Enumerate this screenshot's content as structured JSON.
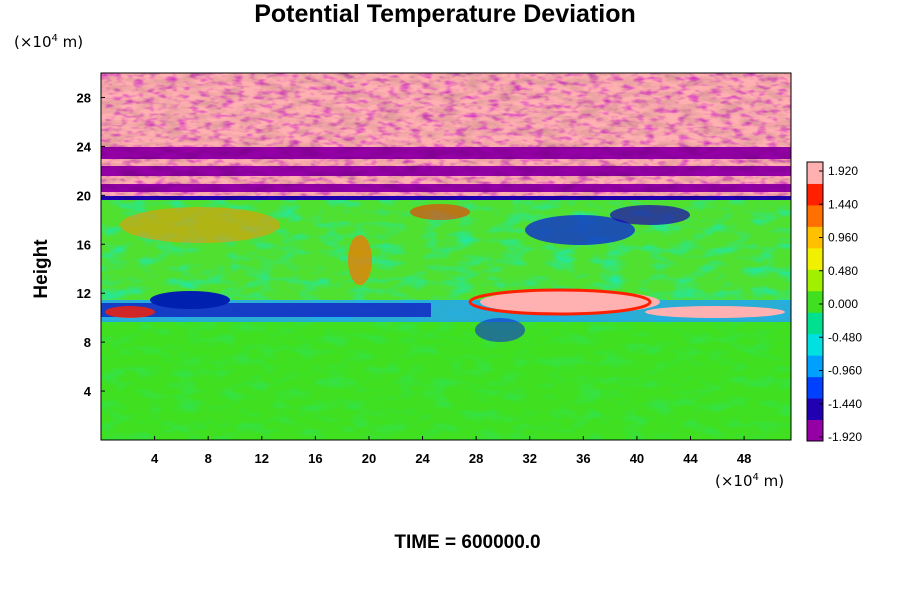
{
  "chart_data": {
    "type": "heatmap",
    "title": "Potential Temperature Deviation",
    "ylabel": "Height",
    "xlabel": "",
    "x_unit": {
      "prefix": "(×10",
      "power": "4",
      "suffix": " m)"
    },
    "y_unit": {
      "prefix": "(×10",
      "power": "4",
      "suffix": " m)"
    },
    "xlim": [
      0,
      51.5
    ],
    "ylim": [
      0,
      30
    ],
    "x_ticks": [
      "4",
      "8",
      "12",
      "16",
      "20",
      "24",
      "28",
      "32",
      "36",
      "40",
      "44",
      "48"
    ],
    "y_ticks": [
      "4",
      "8",
      "12",
      "16",
      "20",
      "24",
      "28"
    ],
    "colorbar": {
      "labels": [
        "1.920",
        "1.440",
        "0.960",
        "0.480",
        "0.000",
        "-0.480",
        "-0.960",
        "-1.440",
        "-1.920"
      ],
      "range": [
        -1.92,
        1.92
      ],
      "colors": [
        "#9400a6",
        "#2000b0",
        "#0040ff",
        "#00a0ff",
        "#00e0e0",
        "#00e090",
        "#40e020",
        "#a0f000",
        "#f0f000",
        "#ffc000",
        "#ff7000",
        "#ff2000",
        "#ffb0b0"
      ]
    },
    "description_layers": [
      {
        "y_range": [
          0,
          9.5
        ],
        "value": 0.0
      },
      {
        "y_range": [
          9.5,
          12
        ],
        "value": -0.8
      },
      {
        "y_range": [
          12,
          20
        ],
        "value": 0.2
      },
      {
        "y_range": [
          20,
          30
        ],
        "value": 1.9
      }
    ]
  },
  "footer": {
    "time_label": "TIME = 600000.0"
  }
}
